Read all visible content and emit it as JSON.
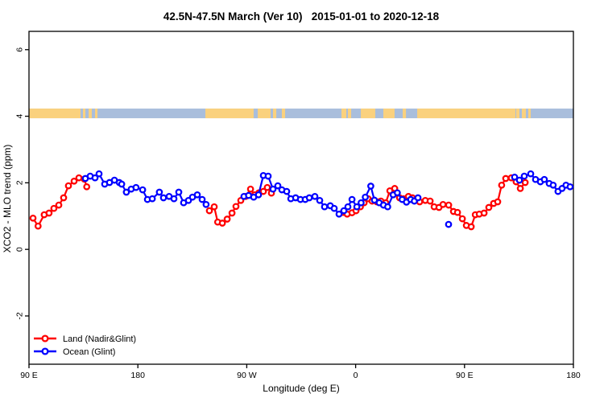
{
  "title": "42.5N-47.5N March (Ver 10)   2015-01-01 to 2020-12-18",
  "legend": {
    "items": [
      {
        "label": "Land (Nadir&Glint)",
        "color": "#FF0000"
      },
      {
        "label": "Ocean (Glint)",
        "color": "#0000FF"
      }
    ]
  },
  "colors": {
    "land_series": "#FF0000",
    "ocean_series": "#0000FF",
    "map_land": "#FAD17E",
    "map_ocean": "#A9BEDC",
    "axis": "#000000"
  },
  "chart_data": {
    "type": "scatter",
    "title": "42.5N-47.5N March (Ver 10)   2015-01-01 to 2020-12-18",
    "xlabel": "Longitude (deg E)",
    "ylabel": "XCO2 - MLO trend (ppm)",
    "xlim": [
      90,
      540
    ],
    "ylim": [
      -3.45,
      6.55
    ],
    "grid": false,
    "legend_position": "bottom-left",
    "x_ticks": [
      {
        "lon": 90,
        "label": "90 E"
      },
      {
        "lon": 180,
        "label": "180"
      },
      {
        "lon": 270,
        "label": "90 W"
      },
      {
        "lon": 360,
        "label": "0"
      },
      {
        "lon": 450,
        "label": "90 E"
      },
      {
        "lon": 540,
        "label": "180"
      }
    ],
    "y_ticks": [
      -2,
      0,
      2,
      4,
      6
    ],
    "map_strip": {
      "ppm_range": [
        3.94,
        4.23
      ],
      "ocean_color": "#A9BEDC",
      "land_color": "#FAD17E",
      "land_segments_lon": [
        [
          90,
          132.6
        ],
        [
          134.6,
          136.6
        ],
        [
          139.3,
          141.9
        ],
        [
          144.6,
          146.6
        ],
        [
          235.8,
          289.7
        ],
        [
          291.7,
          294.4
        ],
        [
          299.0,
          301.7
        ],
        [
          348.3,
          352.3
        ],
        [
          353.6,
          356.3
        ],
        [
          364.3,
          376.2
        ],
        [
          382.9,
          392.2
        ],
        [
          398.9,
          401.6
        ],
        [
          410.9,
          492.1
        ],
        [
          492.7,
          495.4
        ],
        [
          497.4,
          500.7
        ],
        [
          502.7,
          504.7
        ]
      ],
      "lake_segments_lon": [
        [
          275.7,
          279.1
        ]
      ]
    },
    "series": [
      {
        "name": "Land (Nadir&Glint)",
        "color": "#FF0000",
        "segments": [
          [
            [
              93.3,
              0.94
            ],
            [
              97.5,
              0.7
            ],
            [
              102.6,
              1.04
            ],
            [
              106.6,
              1.09
            ],
            [
              110.6,
              1.23
            ],
            [
              114.6,
              1.33
            ],
            [
              118.6,
              1.55
            ],
            [
              122.6,
              1.91
            ],
            [
              127.3,
              2.05
            ],
            [
              131.3,
              2.15
            ],
            [
              135.7,
              2.11
            ],
            [
              137.7,
              1.88
            ]
          ],
          [
            [
              239.1,
              1.16
            ],
            [
              243.1,
              1.28
            ],
            [
              246.0,
              0.82
            ],
            [
              249.8,
              0.79
            ],
            [
              253.8,
              0.91
            ],
            [
              257.8,
              1.09
            ],
            [
              261.1,
              1.29
            ],
            [
              265.1,
              1.47
            ],
            [
              269.1,
              1.59
            ],
            [
              273.1,
              1.81
            ],
            [
              276.4,
              1.64
            ],
            [
              280.0,
              1.7
            ],
            [
              283.7,
              1.74
            ],
            [
              287.0,
              1.86
            ],
            [
              290.4,
              1.69
            ]
          ],
          [
            [
              349.6,
              1.11
            ],
            [
              353.0,
              1.06
            ],
            [
              357.0,
              1.1
            ],
            [
              360.3,
              1.16
            ],
            [
              363.9,
              1.28
            ],
            [
              367.0,
              1.4
            ],
            [
              370.3,
              1.52
            ],
            [
              373.6,
              1.45
            ],
            [
              377.6,
              1.43
            ],
            [
              380.9,
              1.45
            ],
            [
              384.9,
              1.4
            ],
            [
              388.3,
              1.76
            ],
            [
              392.3,
              1.83
            ],
            [
              396.3,
              1.55
            ],
            [
              399.6,
              1.52
            ],
            [
              403.6,
              1.59
            ],
            [
              406.9,
              1.55
            ],
            [
              408.9,
              1.47
            ],
            [
              412.9,
              1.43
            ],
            [
              417.6,
              1.47
            ],
            [
              421.6,
              1.45
            ],
            [
              424.9,
              1.28
            ],
            [
              428.9,
              1.26
            ],
            [
              432.2,
              1.35
            ],
            [
              436.9,
              1.33
            ],
            [
              440.9,
              1.14
            ],
            [
              444.2,
              1.11
            ],
            [
              448.2,
              0.92
            ],
            [
              451.5,
              0.72
            ],
            [
              455.5,
              0.68
            ],
            [
              458.9,
              1.04
            ],
            [
              462.2,
              1.06
            ],
            [
              466.2,
              1.09
            ],
            [
              470.1,
              1.26
            ],
            [
              474.1,
              1.38
            ],
            [
              477.4,
              1.43
            ],
            [
              480.7,
              1.93
            ],
            [
              484.1,
              2.13
            ],
            [
              488.7,
              2.15
            ],
            [
              492.7,
              2.03
            ],
            [
              496.1,
              1.83
            ],
            [
              500.1,
              2.01
            ]
          ]
        ]
      },
      {
        "name": "Ocean (Glint)",
        "color": "#0000FF",
        "segments": [
          [
            [
              136.6,
              2.13
            ],
            [
              140.6,
              2.2
            ],
            [
              144.6,
              2.15
            ],
            [
              147.9,
              2.27
            ],
            [
              152.6,
              1.96
            ],
            [
              156.6,
              2.01
            ],
            [
              160.6,
              2.08
            ],
            [
              164.6,
              2.01
            ],
            [
              166.6,
              1.96
            ],
            [
              170.5,
              1.72
            ],
            [
              174.5,
              1.81
            ],
            [
              178.5,
              1.86
            ],
            [
              183.9,
              1.79
            ],
            [
              187.9,
              1.5
            ],
            [
              191.9,
              1.52
            ],
            [
              197.8,
              1.72
            ],
            [
              201.2,
              1.55
            ],
            [
              205.8,
              1.59
            ],
            [
              209.8,
              1.52
            ],
            [
              213.8,
              1.72
            ],
            [
              217.8,
              1.4
            ],
            [
              221.8,
              1.47
            ],
            [
              225.1,
              1.57
            ],
            [
              229.1,
              1.64
            ],
            [
              233.1,
              1.5
            ],
            [
              236.4,
              1.35
            ]
          ],
          [
            [
              267.7,
              1.59
            ],
            [
              271.5,
              1.62
            ],
            [
              275.7,
              1.57
            ],
            [
              279.7,
              1.64
            ],
            [
              283.7,
              2.22
            ],
            [
              287.7,
              2.2
            ],
            [
              291.7,
              1.81
            ],
            [
              295.7,
              1.91
            ],
            [
              299.0,
              1.79
            ],
            [
              303.0,
              1.74
            ],
            [
              306.4,
              1.52
            ],
            [
              310.4,
              1.55
            ],
            [
              314.4,
              1.5
            ],
            [
              318.3,
              1.5
            ],
            [
              321.7,
              1.55
            ],
            [
              326.3,
              1.59
            ],
            [
              330.3,
              1.47
            ],
            [
              334.3,
              1.28
            ],
            [
              339.0,
              1.31
            ],
            [
              342.3,
              1.23
            ],
            [
              346.3,
              1.06
            ],
            [
              350.3,
              1.16
            ],
            [
              353.6,
              1.28
            ],
            [
              357.0,
              1.5
            ],
            [
              361.0,
              1.28
            ],
            [
              364.5,
              1.4
            ],
            [
              368.0,
              1.57
            ],
            [
              372.5,
              1.9
            ],
            [
              375.5,
              1.48
            ],
            [
              379.5,
              1.4
            ],
            [
              383.0,
              1.33
            ],
            [
              386.5,
              1.28
            ],
            [
              391.0,
              1.64
            ],
            [
              394.5,
              1.7
            ],
            [
              398.5,
              1.5
            ],
            [
              402.0,
              1.42
            ],
            [
              405.5,
              1.5
            ],
            [
              408.5,
              1.45
            ],
            [
              411.5,
              1.55
            ]
          ],
          [
            [
              436.8,
              0.75
            ]
          ],
          [
            [
              491.4,
              2.17
            ],
            [
              495.4,
              2.08
            ],
            [
              499.4,
              2.2
            ],
            [
              504.7,
              2.27
            ],
            [
              508.7,
              2.1
            ],
            [
              512.7,
              2.03
            ],
            [
              516.0,
              2.1
            ],
            [
              520.0,
              1.98
            ],
            [
              523.3,
              1.93
            ],
            [
              527.3,
              1.74
            ],
            [
              530.6,
              1.83
            ],
            [
              533.9,
              1.93
            ],
            [
              537.3,
              1.88
            ]
          ]
        ]
      }
    ]
  }
}
